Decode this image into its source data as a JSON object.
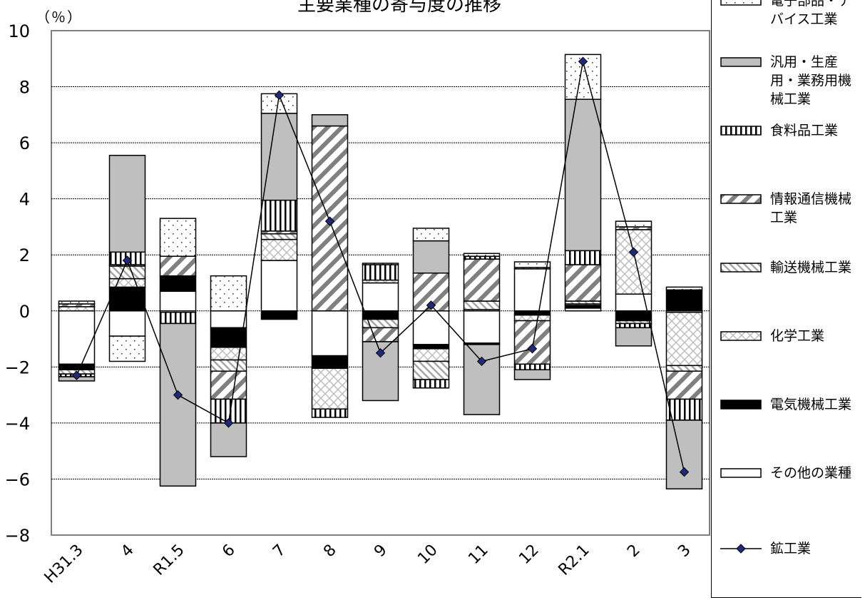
{
  "title": "主要業種の寄与度の推移",
  "unit_label": "（％）",
  "chart_data": {
    "type": "bar",
    "stacked": true,
    "categories": [
      "H31.3",
      "4",
      "R1.5",
      "6",
      "7",
      "8",
      "9",
      "10",
      "11",
      "12",
      "R2.1",
      "2",
      "3"
    ],
    "ylim": [
      -8,
      10
    ],
    "yticks": [
      10,
      8,
      6,
      4,
      2,
      0,
      -2,
      -4,
      -6,
      -8
    ],
    "ytick_labels": [
      "10",
      "8",
      "6",
      "4",
      "2",
      "0",
      "−2",
      "−4",
      "−6",
      "−8"
    ],
    "grid": true,
    "legend_position": "right",
    "series": [
      {
        "name": "その他の業種",
        "values": [
          -1.9,
          -0.9,
          0.7,
          -0.6,
          1.8,
          -1.6,
          1.0,
          -1.2,
          -1.15,
          1.5,
          0.1,
          0.6,
          -0.05
        ]
      },
      {
        "name": "電気機械工業",
        "values": [
          -0.2,
          0.85,
          0.55,
          -0.7,
          -0.3,
          -0.45,
          -0.3,
          -0.15,
          -0.05,
          -0.15,
          0.1,
          -0.35,
          0.75
        ]
      },
      {
        "name": "化学工業",
        "values": [
          0.15,
          0.3,
          -0.05,
          -0.45,
          0.75,
          -1.45,
          0.1,
          -0.45,
          0.05,
          -0.2,
          0.05,
          2.3,
          -1.9
        ]
      },
      {
        "name": "輸送機械工業",
        "values": [
          -0.15,
          0.45,
          0.0,
          -0.4,
          0.2,
          0.0,
          -0.3,
          -0.65,
          0.3,
          0.05,
          0.1,
          -0.1,
          -0.2
        ]
      },
      {
        "name": "情報通信機械工業",
        "values": [
          0.1,
          0.05,
          0.7,
          -1.0,
          0.1,
          6.6,
          -0.5,
          1.35,
          1.5,
          -1.55,
          1.3,
          0.1,
          -1.0
        ]
      },
      {
        "name": "食料品工業",
        "values": [
          -0.1,
          0.45,
          -0.4,
          -0.85,
          1.1,
          -0.3,
          0.55,
          -0.3,
          0.1,
          -0.2,
          0.5,
          -0.15,
          -0.75
        ]
      },
      {
        "name": "汎用・生産用・業務用機械工業",
        "values": [
          -0.15,
          3.45,
          -5.8,
          -1.2,
          3.1,
          0.4,
          -2.1,
          1.15,
          -2.5,
          -0.35,
          5.4,
          -0.65,
          -2.45
        ]
      },
      {
        "name": "電子部品・デバイス工業",
        "values": [
          0.1,
          -0.9,
          1.35,
          1.25,
          0.7,
          0.0,
          0.05,
          0.45,
          0.1,
          0.2,
          1.6,
          0.2,
          0.1
        ]
      }
    ],
    "line": {
      "name": "鉱工業",
      "values": [
        -2.3,
        1.8,
        -3.0,
        -4.0,
        7.7,
        3.2,
        -1.5,
        0.2,
        -1.8,
        -1.35,
        8.9,
        2.1,
        -5.75
      ]
    }
  },
  "legend": [
    {
      "label": "電子部品・デバイス工業",
      "fill": "dots"
    },
    {
      "label": "汎用・生産用・業務用機械工業",
      "fill": "gray"
    },
    {
      "label": "食料品工業",
      "fill": "vstripes"
    },
    {
      "label": "情報通信機械工業",
      "fill": "diagonal"
    },
    {
      "label": "輸送機械工業",
      "fill": "fine-diagonal"
    },
    {
      "label": "化学工業",
      "fill": "crosshatch"
    },
    {
      "label": "電気機械工業",
      "fill": "black"
    },
    {
      "label": "その他の業種",
      "fill": "white"
    },
    {
      "label": "鉱工業",
      "fill": "line-diamond"
    }
  ]
}
